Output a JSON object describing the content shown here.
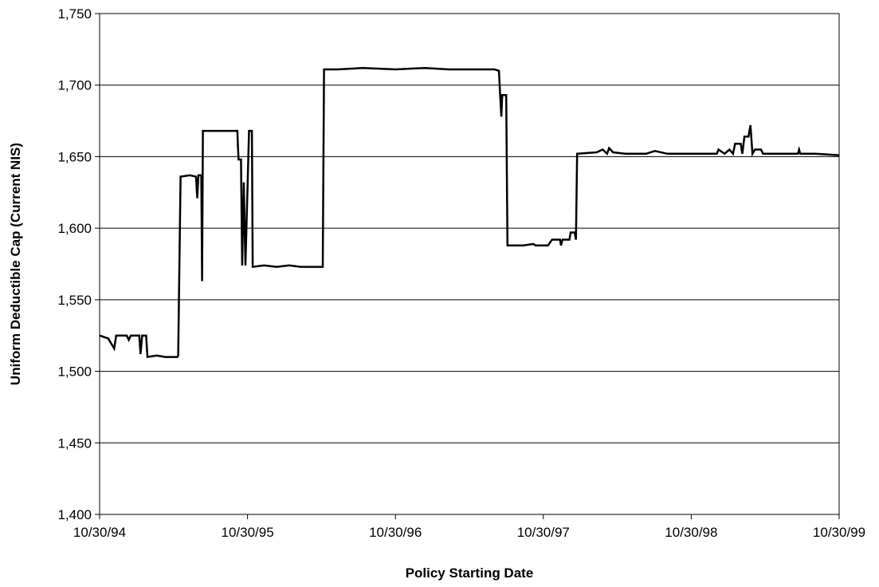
{
  "chart_data": {
    "type": "line",
    "title": "",
    "xlabel": "Policy Starting Date",
    "ylabel": "Uniform Deductible Cap (Current NIS)",
    "x_tick_labels": [
      "10/30/94",
      "10/30/95",
      "10/30/96",
      "10/30/97",
      "10/30/98",
      "10/30/99"
    ],
    "y_tick_labels": [
      "1,400",
      "1,450",
      "1,500",
      "1,550",
      "1,600",
      "1,650",
      "1,700",
      "1,750"
    ],
    "xlim": [
      "1994-10-30",
      "1999-10-30"
    ],
    "ylim": [
      1400,
      1750
    ],
    "grid": "horizontal",
    "legend": "none",
    "line_color": "#000000",
    "series": [
      {
        "points": [
          [
            "1994-10-30",
            1525
          ],
          [
            "1994-11-20",
            1523
          ],
          [
            "1994-12-05",
            1516
          ],
          [
            "1994-12-10",
            1525
          ],
          [
            "1995-01-05",
            1525
          ],
          [
            "1995-01-10",
            1522
          ],
          [
            "1995-01-15",
            1525
          ],
          [
            "1995-02-05",
            1525
          ],
          [
            "1995-02-08",
            1512
          ],
          [
            "1995-02-12",
            1525
          ],
          [
            "1995-02-22",
            1525
          ],
          [
            "1995-02-25",
            1510
          ],
          [
            "1995-03-20",
            1511
          ],
          [
            "1995-04-10",
            1510
          ],
          [
            "1995-05-10",
            1510
          ],
          [
            "1995-05-12",
            1511
          ],
          [
            "1995-05-18",
            1636
          ],
          [
            "1995-06-10",
            1637
          ],
          [
            "1995-06-25",
            1636
          ],
          [
            "1995-06-28",
            1621
          ],
          [
            "1995-07-01",
            1637
          ],
          [
            "1995-07-08",
            1637
          ],
          [
            "1995-07-10",
            1563
          ],
          [
            "1995-07-12",
            1668
          ],
          [
            "1995-08-10",
            1668
          ],
          [
            "1995-09-10",
            1668
          ],
          [
            "1995-10-05",
            1668
          ],
          [
            "1995-10-08",
            1648
          ],
          [
            "1995-10-14",
            1648
          ],
          [
            "1995-10-17",
            1574
          ],
          [
            "1995-10-21",
            1632
          ],
          [
            "1995-10-25",
            1574
          ],
          [
            "1995-11-03",
            1668
          ],
          [
            "1995-11-10",
            1668
          ],
          [
            "1995-11-12",
            1573
          ],
          [
            "1995-12-10",
            1574
          ],
          [
            "1996-01-10",
            1573
          ],
          [
            "1996-02-10",
            1574
          ],
          [
            "1996-03-10",
            1573
          ],
          [
            "1996-04-15",
            1573
          ],
          [
            "1996-05-03",
            1573
          ],
          [
            "1996-05-06",
            1711
          ],
          [
            "1996-06-10",
            1711
          ],
          [
            "1996-08-10",
            1712
          ],
          [
            "1996-10-30",
            1711
          ],
          [
            "1997-01-10",
            1712
          ],
          [
            "1997-03-10",
            1711
          ],
          [
            "1997-05-10",
            1711
          ],
          [
            "1997-07-01",
            1711
          ],
          [
            "1997-07-12",
            1710
          ],
          [
            "1997-07-15",
            1693
          ],
          [
            "1997-07-18",
            1678
          ],
          [
            "1997-07-20",
            1693
          ],
          [
            "1997-07-30",
            1693
          ],
          [
            "1997-08-02",
            1588
          ],
          [
            "1997-09-10",
            1588
          ],
          [
            "1997-10-05",
            1589
          ],
          [
            "1997-10-10",
            1588
          ],
          [
            "1997-11-10",
            1588
          ],
          [
            "1997-11-20",
            1592
          ],
          [
            "1997-12-10",
            1592
          ],
          [
            "1997-12-12",
            1588
          ],
          [
            "1997-12-16",
            1592
          ],
          [
            "1998-01-02",
            1592
          ],
          [
            "1998-01-05",
            1597
          ],
          [
            "1998-01-15",
            1597
          ],
          [
            "1998-01-18",
            1592
          ],
          [
            "1998-01-21",
            1652
          ],
          [
            "1998-03-10",
            1653
          ],
          [
            "1998-03-25",
            1655
          ],
          [
            "1998-04-05",
            1652
          ],
          [
            "1998-04-10",
            1656
          ],
          [
            "1998-04-20",
            1653
          ],
          [
            "1998-05-20",
            1652
          ],
          [
            "1998-07-10",
            1652
          ],
          [
            "1998-08-01",
            1654
          ],
          [
            "1998-09-01",
            1652
          ],
          [
            "1998-11-01",
            1652
          ],
          [
            "1998-12-01",
            1652
          ],
          [
            "1999-01-01",
            1652
          ],
          [
            "1999-01-05",
            1655
          ],
          [
            "1999-01-20",
            1652
          ],
          [
            "1999-02-01",
            1655
          ],
          [
            "1999-02-10",
            1652
          ],
          [
            "1999-02-15",
            1659
          ],
          [
            "1999-03-01",
            1659
          ],
          [
            "1999-03-05",
            1652
          ],
          [
            "1999-03-10",
            1664
          ],
          [
            "1999-03-20",
            1664
          ],
          [
            "1999-03-25",
            1672
          ],
          [
            "1999-03-30",
            1652
          ],
          [
            "1999-04-05",
            1655
          ],
          [
            "1999-04-20",
            1655
          ],
          [
            "1999-04-25",
            1652
          ],
          [
            "1999-06-01",
            1652
          ],
          [
            "1999-07-10",
            1652
          ],
          [
            "1999-07-20",
            1652
          ],
          [
            "1999-07-23",
            1655
          ],
          [
            "1999-07-26",
            1652
          ],
          [
            "1999-09-01",
            1652
          ],
          [
            "1999-10-30",
            1651
          ]
        ]
      }
    ]
  }
}
